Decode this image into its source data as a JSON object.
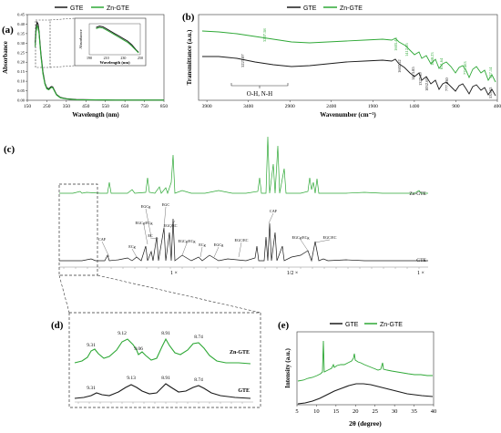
{
  "colors": {
    "gte": "#1a1a1a",
    "zn_gte": "#2ea836",
    "axis": "#333333",
    "grid": "#bbbbbb"
  },
  "legend": {
    "gte": "GTE",
    "zn_gte": "Zn-GTE"
  },
  "chart_data": [
    {
      "panel": "(a)",
      "type": "line",
      "xlabel": "Wavelength (nm)",
      "ylabel": "Absorbance",
      "xlim": [
        150,
        850
      ],
      "ylim": [
        0,
        0.45
      ],
      "xticks": [
        "150",
        "250",
        "350",
        "450",
        "550",
        "650",
        "750",
        "850"
      ],
      "yticks": [
        "0.00",
        "0.05",
        "0.10",
        "0.15",
        "0.20",
        "0.25",
        "0.30",
        "0.35",
        "0.40",
        "0.45"
      ],
      "series": [
        {
          "name": "GTE",
          "x": [
            190,
            195,
            200,
            205,
            210,
            215,
            220,
            230,
            240,
            250,
            260,
            270,
            275,
            280,
            290,
            300,
            320,
            350,
            400,
            500,
            600,
            700,
            850
          ],
          "y": [
            0.3,
            0.38,
            0.41,
            0.4,
            0.36,
            0.3,
            0.24,
            0.15,
            0.09,
            0.065,
            0.06,
            0.07,
            0.072,
            0.07,
            0.05,
            0.03,
            0.015,
            0.008,
            0.004,
            0.002,
            0.001,
            0.001,
            0.001
          ]
        },
        {
          "name": "Zn-GTE",
          "x": [
            190,
            195,
            200,
            205,
            210,
            215,
            220,
            230,
            240,
            250,
            260,
            270,
            275,
            280,
            290,
            300,
            320,
            350,
            400,
            500,
            600,
            700,
            850
          ],
          "y": [
            0.28,
            0.36,
            0.39,
            0.38,
            0.35,
            0.29,
            0.23,
            0.14,
            0.085,
            0.06,
            0.055,
            0.065,
            0.068,
            0.066,
            0.047,
            0.028,
            0.013,
            0.007,
            0.003,
            0.002,
            0.001,
            0.001,
            0.001
          ]
        }
      ],
      "inset": {
        "xlabel": "Wavelength (nm)",
        "ylabel": "Absorbance",
        "xticks": [
          "190",
          "210",
          "230",
          "250"
        ],
        "xlim": [
          190,
          250
        ],
        "series": [
          {
            "name": "GTE",
            "x": [
              198,
              202,
              206,
              210,
              215,
              220,
              225,
              230,
              235,
              240,
              245,
              248
            ],
            "y": [
              0.4,
              0.41,
              0.405,
              0.39,
              0.37,
              0.35,
              0.33,
              0.31,
              0.29,
              0.26,
              0.22,
              0.2
            ]
          },
          {
            "name": "Zn-GTE",
            "x": [
              198,
              202,
              206,
              210,
              215,
              220,
              225,
              230,
              235,
              240,
              245,
              248
            ],
            "y": [
              0.39,
              0.4,
              0.395,
              0.38,
              0.36,
              0.34,
              0.32,
              0.3,
              0.28,
              0.25,
              0.215,
              0.195
            ]
          }
        ]
      }
    },
    {
      "panel": "(b)",
      "type": "line",
      "xlabel": "Wavenumber (cm⁻¹)",
      "ylabel": "Transmittance (a.u.)",
      "xlim": [
        4000,
        400
      ],
      "xticks": [
        "3900",
        "3400",
        "2900",
        "2400",
        "1900",
        "1400",
        "900",
        "400"
      ],
      "band_label": "O-H, N-H",
      "peak_labels_gte": [
        "3223.07",
        "1602.52",
        "1413.85",
        "1327.39",
        "1032.69",
        "777.630",
        "535.63"
      ],
      "peak_labels_zn": [
        "3207.58",
        "1603.45",
        "1412.05",
        "1040.23",
        "811.64",
        "773.463",
        "537.14"
      ]
    },
    {
      "panel": "(c)",
      "type": "line",
      "title": "",
      "series_labels": [
        "Zn-GTE",
        "GTE"
      ],
      "annotations": [
        "CAF",
        "ECg",
        "EGCg/ECg",
        "EGCg",
        "EGC",
        "EC",
        "EGC/EC",
        "EGCg/ECg",
        "ECg",
        "EGCg",
        "EGC/EC",
        "CAF",
        "EGCg/ECg",
        "EGC/EC"
      ],
      "axis_marks": [
        "1 ×",
        "1/2 ×",
        "1 ×"
      ]
    },
    {
      "panel": "(d)",
      "type": "line",
      "peaks_zn": [
        "9.31",
        "9.12",
        "9.06",
        "8.91",
        "8.74"
      ],
      "peaks_gte": [
        "9.31",
        "9.13",
        "8.91",
        "8.74"
      ],
      "series_labels": [
        "Zn-GTE",
        "GTE"
      ]
    },
    {
      "panel": "(e)",
      "type": "line",
      "xlabel": "2θ (degree)",
      "ylabel": "Intensity (a.u.)",
      "xlim": [
        5,
        40
      ],
      "xticks": [
        "5",
        "10",
        "15",
        "20",
        "25",
        "30",
        "35",
        "40"
      ],
      "series": [
        {
          "name": "GTE",
          "x": [
            5,
            8,
            11,
            14,
            17,
            20,
            23,
            26,
            29,
            32,
            35,
            38,
            40
          ],
          "y": [
            0.05,
            0.07,
            0.12,
            0.2,
            0.28,
            0.35,
            0.38,
            0.36,
            0.3,
            0.24,
            0.18,
            0.13,
            0.1
          ]
        },
        {
          "name": "Zn-GTE",
          "x": [
            5,
            8,
            11,
            13.5,
            14,
            14.5,
            17,
            20,
            22,
            23.5,
            24,
            26,
            29,
            32,
            35,
            38,
            40
          ],
          "y": [
            0.42,
            0.46,
            0.52,
            0.6,
            1.0,
            0.62,
            0.66,
            0.72,
            0.76,
            0.82,
            0.74,
            0.72,
            0.66,
            0.6,
            0.56,
            0.53,
            0.52
          ]
        }
      ]
    }
  ]
}
